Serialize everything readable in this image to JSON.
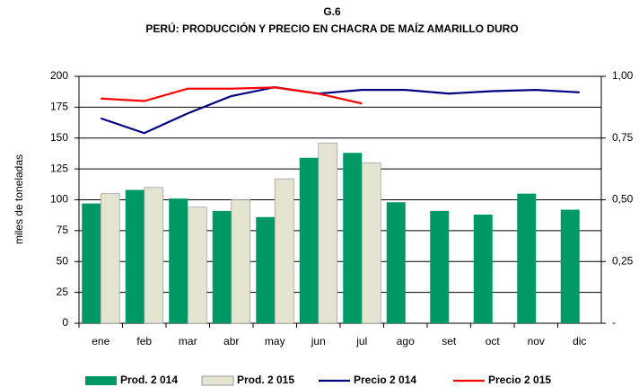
{
  "chart_data": {
    "type": "bar_line",
    "title": "G.6",
    "subtitle": "PERÚ: PRODUCCIÓN Y PRECIO EN CHACRA DE MAÍZ AMARILLO DURO",
    "y_label": "miles de toneladas",
    "categories": [
      "ene",
      "feb",
      "mar",
      "abr",
      "may",
      "jun",
      "jul",
      "ago",
      "set",
      "oct",
      "nov",
      "dic"
    ],
    "series": [
      {
        "name": "Prod. 2 014",
        "type": "bar",
        "color": "#009966",
        "values": [
          97,
          108,
          101,
          91,
          86,
          134,
          138,
          98,
          91,
          88,
          105,
          92
        ]
      },
      {
        "name": "Prod. 2 015",
        "type": "bar",
        "color": "#e3e5d0",
        "values": [
          105,
          110,
          94,
          100,
          117,
          146,
          130,
          null,
          null,
          null,
          null,
          null
        ]
      },
      {
        "name": "Precio 2 014",
        "type": "line",
        "axis": "y2",
        "color": "#000080",
        "values": [
          0.83,
          0.77,
          0.85,
          0.92,
          0.956,
          0.93,
          0.945,
          0.945,
          0.93,
          0.94,
          0.945,
          0.935
        ]
      },
      {
        "name": "Precio 2 015",
        "type": "line",
        "axis": "y2",
        "color": "#ff0000",
        "values": [
          0.91,
          0.9,
          0.95,
          0.95,
          0.955,
          0.93,
          0.89,
          null,
          null,
          null,
          null,
          null
        ]
      }
    ],
    "ylim": [
      0,
      200
    ],
    "yticks": [
      0,
      25,
      50,
      75,
      100,
      125,
      150,
      175,
      200
    ],
    "y2lim": [
      0,
      1
    ],
    "y2ticks": [
      {
        "value": 0,
        "label": "-"
      },
      {
        "value": 0.25,
        "label": "0,25"
      },
      {
        "value": 0.5,
        "label": "0,50"
      },
      {
        "value": 0.75,
        "label": "0,75"
      },
      {
        "value": 1,
        "label": "1,00"
      }
    ],
    "grid": true,
    "legend": "bottom"
  }
}
